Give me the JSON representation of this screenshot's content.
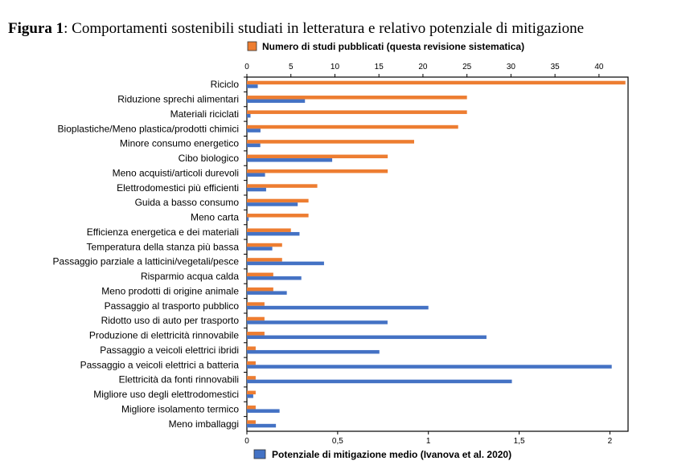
{
  "figure": {
    "label": "Figura 1",
    "caption": ": Comportamenti sostenibili studiati in letteratura e relativo potenziale di mitigazione"
  },
  "chart_data": {
    "type": "bar",
    "orientation": "horizontal",
    "categories": [
      "Riciclo",
      "Riduzione sprechi alimentari",
      "Materiali riciclati",
      "Bioplastiche/Meno plastica/prodotti chimici",
      "Minore consumo energetico",
      "Cibo biologico",
      "Meno acquisti/articoli durevoli",
      "Elettrodomestici più efficienti",
      "Guida a basso consumo",
      "Meno carta",
      "Efficienza energetica e dei materiali",
      "Temperatura della stanza più bassa",
      "Passaggio parziale a latticini/vegetali/pesce",
      "Risparmio acqua calda",
      "Meno prodotti di origine animale",
      "Passaggio al trasporto pubblico",
      "Ridotto uso di auto per trasporto",
      "Produzione di elettricità rinnovabile",
      "Passaggio a veicoli elettrici ibridi",
      "Passaggio a veicoli elettrici a batteria",
      "Elettricità da fonti rinnovabili",
      "Migliore uso degli elettrodomestici",
      "Migliore isolamento termico",
      "Meno imballaggi"
    ],
    "series": [
      {
        "name": "Numero di studi pubblicati (questa revisione sistematica)",
        "axis": "top",
        "color": "#ED7D31",
        "values": [
          43,
          25,
          25,
          24,
          19,
          16,
          16,
          8,
          7,
          7,
          5,
          4,
          4,
          3,
          3,
          2,
          2,
          2,
          1,
          1,
          1,
          1,
          1,
          1
        ]
      },
      {
        "name": "Potenziale di mitigazione medio (Ivanova et al. 2020)",
        "axis": "bottom",
        "color": "#4472C4",
        "values": [
          0.06,
          0.32,
          0.02,
          0.075,
          0.074,
          0.47,
          0.1,
          0.106,
          0.28,
          0.01,
          0.29,
          0.14,
          0.425,
          0.3,
          0.22,
          1.0,
          0.775,
          1.32,
          0.73,
          2.01,
          1.46,
          0.035,
          0.18,
          0.16
        ]
      }
    ],
    "top_axis": {
      "range": [
        0,
        43.3
      ],
      "ticks": [
        "0",
        "5",
        "10",
        "15",
        "20",
        "25",
        "30",
        "35",
        "40"
      ],
      "tick_values": [
        0,
        5,
        10,
        15,
        20,
        25,
        30,
        35,
        40
      ]
    },
    "bottom_axis": {
      "range": [
        0,
        2.1
      ],
      "ticks": [
        "0",
        "0,5",
        "1",
        "1,5",
        "2"
      ],
      "tick_values": [
        0,
        0.5,
        1,
        1.5,
        2
      ]
    },
    "legend": {
      "top_label": "Numero di studi pubblicati (questa revisione sistematica)",
      "bottom_label": "Potenziale di mitigazione medio (Ivanova et al. 2020)"
    },
    "grid": false
  }
}
